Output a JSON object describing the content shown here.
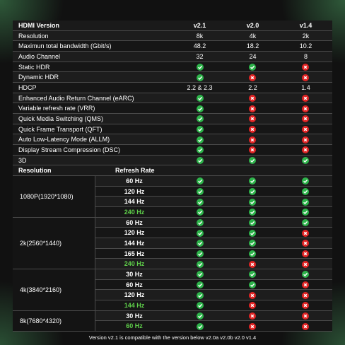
{
  "header": {
    "title": "HDMI Version",
    "versions": [
      "v2.1",
      "v2.0",
      "v1.4"
    ]
  },
  "features": [
    {
      "label": "Resolution",
      "cells": [
        "8k",
        "4k",
        "2k"
      ]
    },
    {
      "label": "Maximun total bandwidth (Gbit/s)",
      "cells": [
        "48.2",
        "18.2",
        "10.2"
      ]
    },
    {
      "label": "Audio Channel",
      "cells": [
        "32",
        "24",
        "8"
      ]
    },
    {
      "label": "Static HDR",
      "cells": [
        true,
        true,
        false
      ]
    },
    {
      "label": "Dynamic HDR",
      "cells": [
        true,
        false,
        false
      ]
    },
    {
      "label": "HDCP",
      "cells": [
        "2.2 & 2.3",
        "2.2",
        "1.4"
      ]
    },
    {
      "label": "Enhanced Audio Return Channel (eARC)",
      "cells": [
        true,
        false,
        false
      ]
    },
    {
      "label": "Variable refresh rate (VRR)",
      "cells": [
        true,
        false,
        false
      ]
    },
    {
      "label": "Quick Media Switching (QMS)",
      "cells": [
        true,
        false,
        false
      ]
    },
    {
      "label": "Quick Frame Transport (QFT)",
      "cells": [
        true,
        false,
        false
      ]
    },
    {
      "label": "Auto Low-Latency Mode (ALLM)",
      "cells": [
        true,
        false,
        false
      ]
    },
    {
      "label": "Display Stream Compression (DSC)",
      "cells": [
        true,
        false,
        false
      ]
    },
    {
      "label": "3D",
      "cells": [
        true,
        true,
        true
      ]
    }
  ],
  "refresh_header": {
    "resolution": "Resolution",
    "rate": "Refresh Rate"
  },
  "groups": [
    {
      "label": "1080P(1920*1080)",
      "rows": [
        {
          "rate": "60 Hz",
          "cells": [
            true,
            true,
            true
          ]
        },
        {
          "rate": "120 Hz",
          "cells": [
            true,
            true,
            true
          ]
        },
        {
          "rate": "144 Hz",
          "cells": [
            true,
            true,
            true
          ]
        },
        {
          "rate": "240 Hz",
          "highlight": true,
          "cells": [
            true,
            true,
            true
          ]
        }
      ]
    },
    {
      "label": "2k(2560*1440)",
      "rows": [
        {
          "rate": "60 Hz",
          "cells": [
            true,
            true,
            true
          ]
        },
        {
          "rate": "120 Hz",
          "cells": [
            true,
            true,
            false
          ]
        },
        {
          "rate": "144 Hz",
          "cells": [
            true,
            true,
            false
          ]
        },
        {
          "rate": "165 Hz",
          "cells": [
            true,
            true,
            false
          ]
        },
        {
          "rate": "240 Hz",
          "highlight": true,
          "cells": [
            true,
            false,
            false
          ]
        }
      ]
    },
    {
      "label": "4k(3840*2160)",
      "rows": [
        {
          "rate": "30 Hz",
          "cells": [
            true,
            true,
            true
          ]
        },
        {
          "rate": "60 Hz",
          "cells": [
            true,
            true,
            false
          ]
        },
        {
          "rate": "120 Hz",
          "cells": [
            true,
            false,
            false
          ]
        },
        {
          "rate": "144 Hz",
          "highlight": true,
          "cells": [
            true,
            false,
            false
          ]
        }
      ]
    },
    {
      "label": "8k(7680*4320)",
      "rows": [
        {
          "rate": "30 Hz",
          "cells": [
            true,
            false,
            false
          ]
        },
        {
          "rate": "60 Hz",
          "highlight": true,
          "cells": [
            true,
            false,
            false
          ]
        }
      ]
    }
  ],
  "footer": "Version v2.1 is compatible with the version below v2.0a v2.0b v2.0 v1.4"
}
